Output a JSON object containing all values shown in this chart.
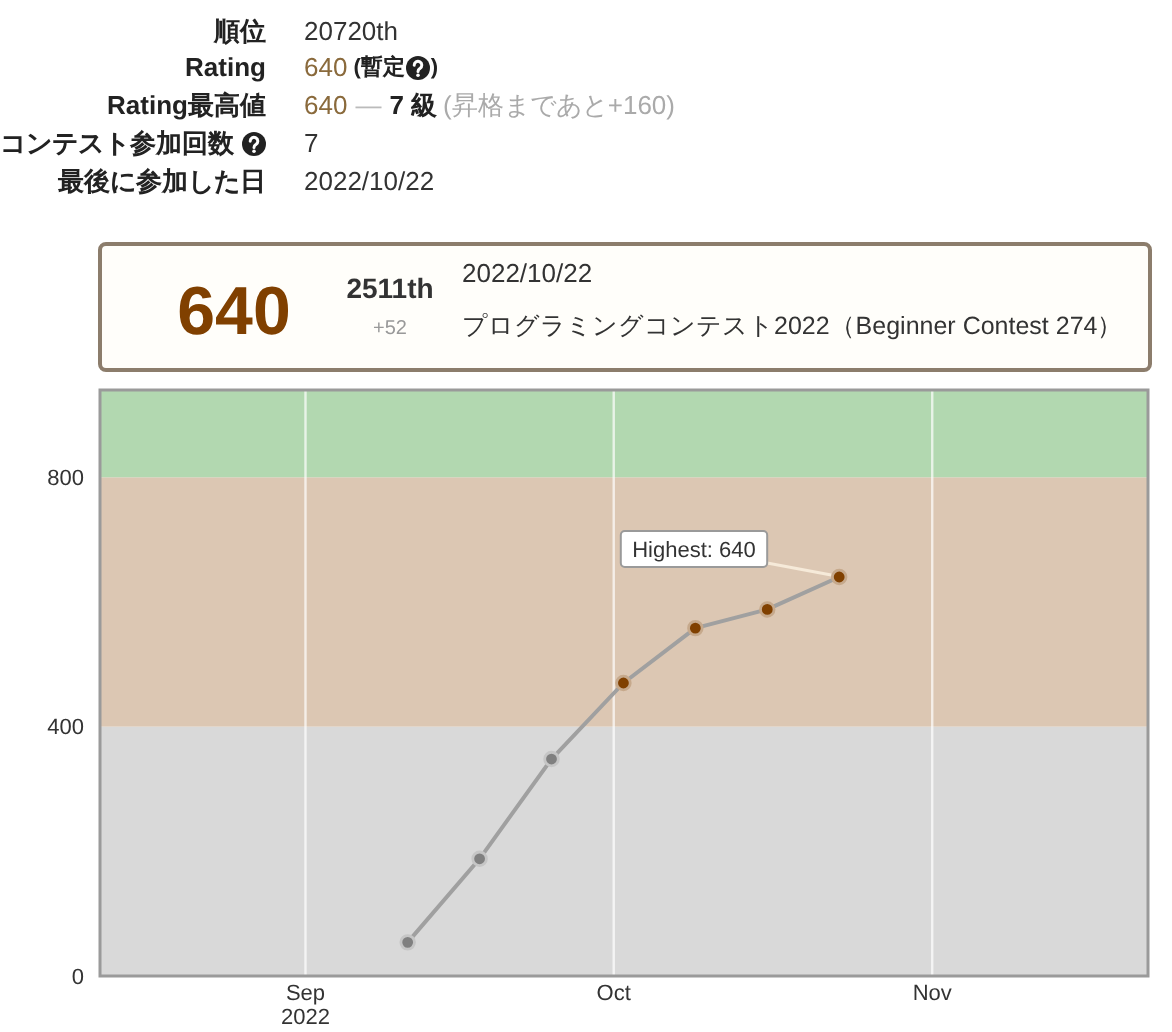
{
  "chart_data": [
    {
      "type": "other",
      "annotations": [
        "順位",
        "20720th",
        "Rating",
        "640",
        "(暫定",
        ")",
        "Rating最高値",
        "640",
        "—",
        "7 級",
        "(昇格まであと+160)",
        "コンテスト参加回数",
        "7",
        "最後に参加した日",
        "2022/10/22"
      ]
    },
    {
      "type": "line",
      "annotations": [
        "640",
        "2511th",
        "+52",
        "2022/10/22",
        "プログラミングコンテスト2022（Beginner Contest 274）",
        {
          "text": "Highest: 640",
          "x": "2022-10-22T22:40",
          "y": 640
        }
      ],
      "x": [
        "2022-09-10T22:40",
        "2022-09-17T22:40",
        "2022-09-24T22:40",
        "2022-10-01T22:40",
        "2022-10-08T22:40",
        "2022-10-15T22:40",
        "2022-10-22T22:40"
      ],
      "series": [
        {
          "color": "#a0a0a0",
          "colors": [
            "#808080",
            "#808080",
            "#808080",
            "#804000",
            "#804000",
            "#804000",
            "#804000"
          ],
          "values": [
            54,
            188,
            348,
            470,
            558,
            588,
            640
          ]
        }
      ],
      "xlim": [
        "2022-08-12",
        "2022-11-22"
      ],
      "xticks": [
        {
          "value": "2022-09-01",
          "label": "Sep\n2022"
        },
        {
          "value": "2022-10-01",
          "label": "Oct"
        },
        {
          "value": "2022-11-01",
          "label": "Nov"
        }
      ],
      "ylim": [
        0,
        940
      ],
      "yticks": [
        0,
        400,
        800
      ],
      "bands": [
        {
          "axis": "y",
          "from": 0,
          "to": 400,
          "color": "#d9d9d9"
        },
        {
          "axis": "y",
          "from": 400,
          "to": 800,
          "color": "#dcc7b3"
        },
        {
          "axis": "y",
          "from": 800,
          "to": 940,
          "color": "#b2d8b0"
        }
      ],
      "grid": "x",
      "marker": "circle",
      "line_style": "solid"
    }
  ]
}
